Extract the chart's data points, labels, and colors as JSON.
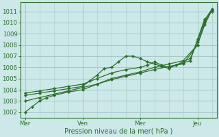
{
  "bg_color": "#cce8e8",
  "grid_color": "#a8c8c8",
  "line_color": "#2d6e2d",
  "marker_color": "#2d6e2d",
  "xlabel": "Pression niveau de la mer( hPa )",
  "xlabel_color": "#2d6e2d",
  "tick_color": "#2d6e2d",
  "ylim": [
    1001.5,
    1011.8
  ],
  "yticks": [
    1002,
    1003,
    1004,
    1005,
    1006,
    1007,
    1008,
    1009,
    1010,
    1011
  ],
  "xtick_labels": [
    "Mar",
    "Ven",
    "Mer",
    "Jeu"
  ],
  "xtick_positions": [
    0,
    24,
    48,
    72
  ],
  "xlim": [
    -2,
    80
  ],
  "lines": [
    {
      "x": [
        0,
        3,
        6,
        9,
        12,
        18,
        24,
        30,
        36,
        42,
        48,
        54,
        60,
        66,
        72,
        75,
        78
      ],
      "y": [
        1002.0,
        1002.5,
        1003.0,
        1003.3,
        1003.5,
        1003.8,
        1004.0,
        1004.5,
        1005.0,
        1005.3,
        1005.6,
        1006.0,
        1006.3,
        1006.6,
        1008.0,
        1010.0,
        1011.1
      ]
    },
    {
      "x": [
        0,
        6,
        12,
        18,
        24,
        27,
        30,
        33,
        36,
        39,
        42,
        45,
        48,
        51,
        54,
        57,
        60,
        63,
        66,
        69,
        72,
        75,
        78
      ],
      "y": [
        1003.5,
        1003.7,
        1003.9,
        1004.1,
        1004.3,
        1004.8,
        1005.3,
        1005.9,
        1006.0,
        1006.5,
        1007.0,
        1007.0,
        1006.8,
        1006.5,
        1006.3,
        1006.1,
        1005.9,
        1006.2,
        1006.5,
        1006.8,
        1008.3,
        1010.2,
        1011.2
      ]
    },
    {
      "x": [
        0,
        6,
        12,
        18,
        24,
        30,
        36,
        42,
        48,
        51,
        54,
        57,
        60,
        63,
        66,
        69,
        72,
        75,
        78
      ],
      "y": [
        1003.7,
        1003.9,
        1004.1,
        1004.3,
        1004.5,
        1005.0,
        1005.5,
        1005.8,
        1006.0,
        1006.2,
        1006.5,
        1006.2,
        1006.0,
        1006.2,
        1006.4,
        1006.6,
        1008.5,
        1010.3,
        1011.0
      ]
    },
    {
      "x": [
        0,
        6,
        12,
        18,
        24,
        30,
        36,
        42,
        48,
        54,
        60,
        66,
        72,
        75,
        78
      ],
      "y": [
        1003.0,
        1003.3,
        1003.6,
        1003.9,
        1004.2,
        1004.5,
        1004.9,
        1005.2,
        1005.5,
        1005.8,
        1006.1,
        1006.3,
        1008.0,
        1009.8,
        1011.1
      ]
    }
  ]
}
